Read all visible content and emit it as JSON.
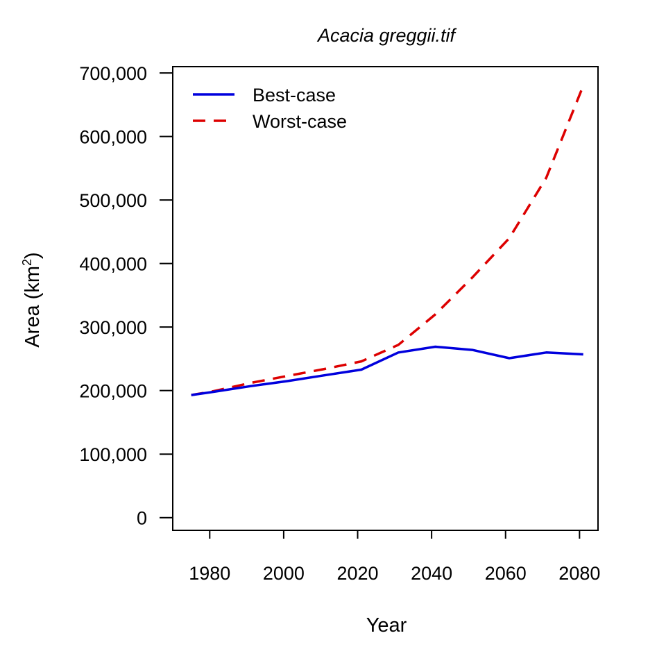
{
  "chart_data": {
    "type": "line",
    "title": "Acacia greggii.tif",
    "xlabel": "Year",
    "ylabel": "Area (km",
    "ylabel_superscript": "2",
    "ylabel_close": ")",
    "xlim": [
      1970,
      2085
    ],
    "ylim": [
      -20000,
      710000
    ],
    "xticks": [
      1980,
      2000,
      2020,
      2040,
      2060,
      2080
    ],
    "yticks": [
      0,
      100000,
      200000,
      300000,
      400000,
      500000,
      600000,
      700000
    ],
    "ytick_labels": [
      "0",
      "100,000",
      "200,000",
      "300,000",
      "400,000",
      "500,000",
      "600,000",
      "700,000"
    ],
    "xtick_labels": [
      "1980",
      "2000",
      "2020",
      "2040",
      "2060",
      "2080"
    ],
    "grid": false,
    "legend_position": "top-left",
    "series": [
      {
        "name": "Best-case",
        "color": "#0000dd",
        "dash": "solid",
        "x": [
          1975,
          1981,
          1991,
          2001,
          2011,
          2021,
          2031,
          2041,
          2051,
          2061,
          2071,
          2081
        ],
        "y": [
          193000,
          198000,
          207000,
          215000,
          224000,
          233000,
          260000,
          269000,
          264000,
          251000,
          260000,
          257000
        ]
      },
      {
        "name": "Worst-case",
        "color": "#dd0000",
        "dash": "dashed",
        "x": [
          1975,
          1981,
          1991,
          2001,
          2011,
          2021,
          2031,
          2041,
          2051,
          2061,
          2071,
          2081
        ],
        "y": [
          193000,
          199000,
          212000,
          223000,
          234000,
          246000,
          272000,
          320000,
          378000,
          440000,
          535000,
          680000
        ]
      }
    ]
  }
}
